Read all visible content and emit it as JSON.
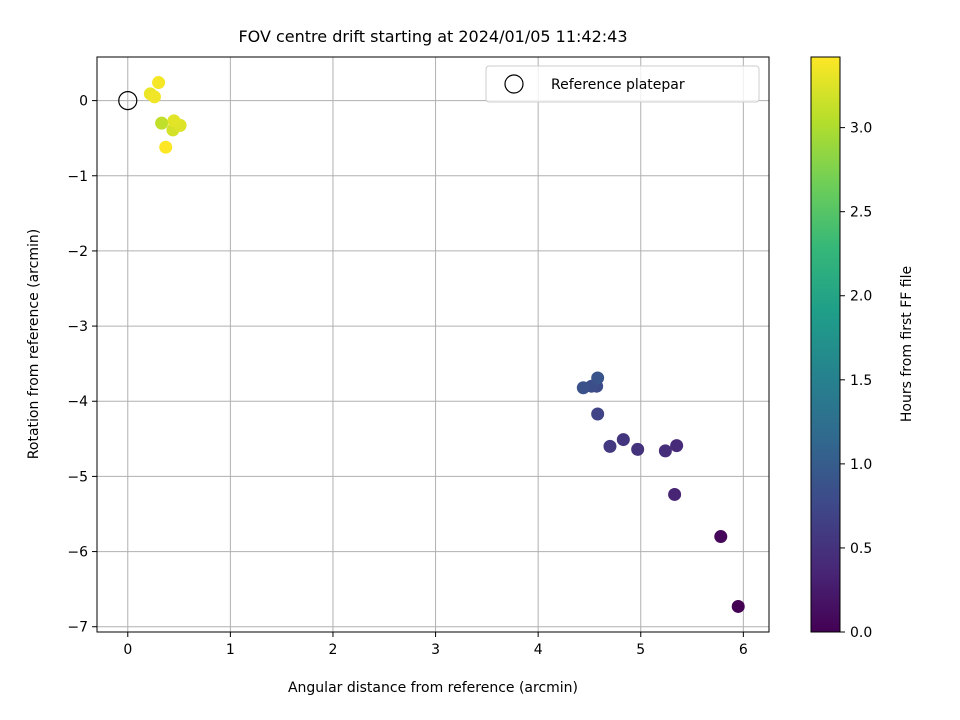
{
  "chart_data": {
    "type": "scatter",
    "title": "FOV centre drift starting at 2024/01/05 11:42:43",
    "xlabel": "Angular distance from reference (arcmin)",
    "ylabel": "Rotation from reference (arcmin)",
    "xlim": [
      -0.3,
      6.25
    ],
    "ylim": [
      -7.07,
      0.58
    ],
    "xticks": [
      0,
      1,
      2,
      3,
      4,
      5,
      6
    ],
    "yticks": [
      0,
      -1,
      -2,
      -3,
      -4,
      -5,
      -6,
      -7
    ],
    "xtick_labels": [
      "0",
      "1",
      "2",
      "3",
      "4",
      "5",
      "6"
    ],
    "ytick_labels": [
      "0",
      "−1",
      "−2",
      "−3",
      "−4",
      "−5",
      "−6",
      "−7"
    ],
    "grid": true,
    "legend": {
      "position": "top-right",
      "label": "Reference platepar"
    },
    "reference_point": {
      "x": 0,
      "y": 0
    },
    "colorbar": {
      "label": "Hours from first FF file",
      "min": 0.0,
      "max": 3.42,
      "ticks": [
        0.0,
        0.5,
        1.0,
        1.5,
        2.0,
        2.5,
        3.0
      ],
      "tick_labels": [
        "0.0",
        "0.5",
        "1.0",
        "1.5",
        "2.0",
        "2.5",
        "3.0"
      ],
      "colormap": "viridis"
    },
    "points": [
      {
        "x": 5.95,
        "y": -6.73,
        "c": 0.0
      },
      {
        "x": 5.78,
        "y": -5.8,
        "c": 0.07
      },
      {
        "x": 5.33,
        "y": -5.24,
        "c": 0.34
      },
      {
        "x": 5.35,
        "y": -4.59,
        "c": 0.41
      },
      {
        "x": 5.24,
        "y": -4.66,
        "c": 0.45
      },
      {
        "x": 4.97,
        "y": -4.64,
        "c": 0.5
      },
      {
        "x": 4.83,
        "y": -4.51,
        "c": 0.53
      },
      {
        "x": 4.7,
        "y": -4.6,
        "c": 0.58
      },
      {
        "x": 4.58,
        "y": -4.17,
        "c": 0.7
      },
      {
        "x": 4.57,
        "y": -3.8,
        "c": 0.78
      },
      {
        "x": 4.52,
        "y": -3.8,
        "c": 0.82
      },
      {
        "x": 4.44,
        "y": -3.82,
        "c": 0.86
      },
      {
        "x": 4.58,
        "y": -3.69,
        "c": 0.9
      },
      {
        "x": 0.33,
        "y": -0.3,
        "c": 3.1
      },
      {
        "x": 0.44,
        "y": -0.39,
        "c": 3.2
      },
      {
        "x": 0.51,
        "y": -0.33,
        "c": 3.25
      },
      {
        "x": 0.45,
        "y": -0.27,
        "c": 3.28
      },
      {
        "x": 0.22,
        "y": 0.09,
        "c": 3.32
      },
      {
        "x": 0.26,
        "y": 0.05,
        "c": 3.35
      },
      {
        "x": 0.3,
        "y": 0.24,
        "c": 3.38
      },
      {
        "x": 0.37,
        "y": -0.62,
        "c": 3.42
      }
    ]
  }
}
